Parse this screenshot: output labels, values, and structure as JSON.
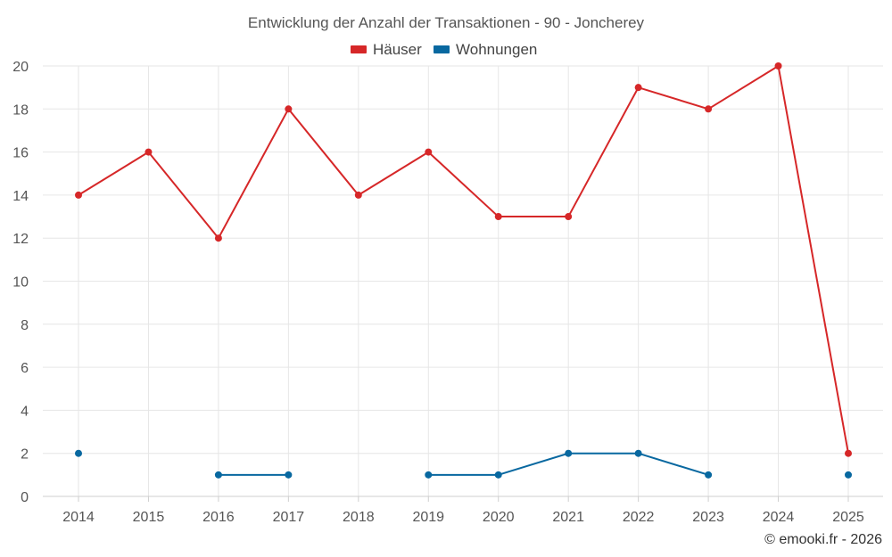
{
  "chart_data": {
    "type": "line",
    "title": "Entwicklung der Anzahl der Transaktionen - 90 - Joncherey",
    "categories": [
      "2014",
      "2015",
      "2016",
      "2017",
      "2018",
      "2019",
      "2020",
      "2021",
      "2022",
      "2023",
      "2024",
      "2025"
    ],
    "series": [
      {
        "name": "Häuser",
        "color": "#d62728",
        "values": [
          14,
          16,
          12,
          18,
          14,
          16,
          13,
          13,
          19,
          18,
          20,
          2
        ]
      },
      {
        "name": "Wohnungen",
        "color": "#0868a0",
        "values": [
          2,
          null,
          1,
          1,
          null,
          1,
          1,
          2,
          2,
          1,
          null,
          1
        ]
      }
    ],
    "ylim": [
      0,
      20
    ],
    "yticks": [
      "0",
      "2",
      "4",
      "6",
      "8",
      "10",
      "12",
      "14",
      "16",
      "18",
      "20"
    ],
    "xlabel": "",
    "ylabel": "",
    "legend": "top-center",
    "grid": true
  },
  "credit": "© emooki.fr - 2026"
}
